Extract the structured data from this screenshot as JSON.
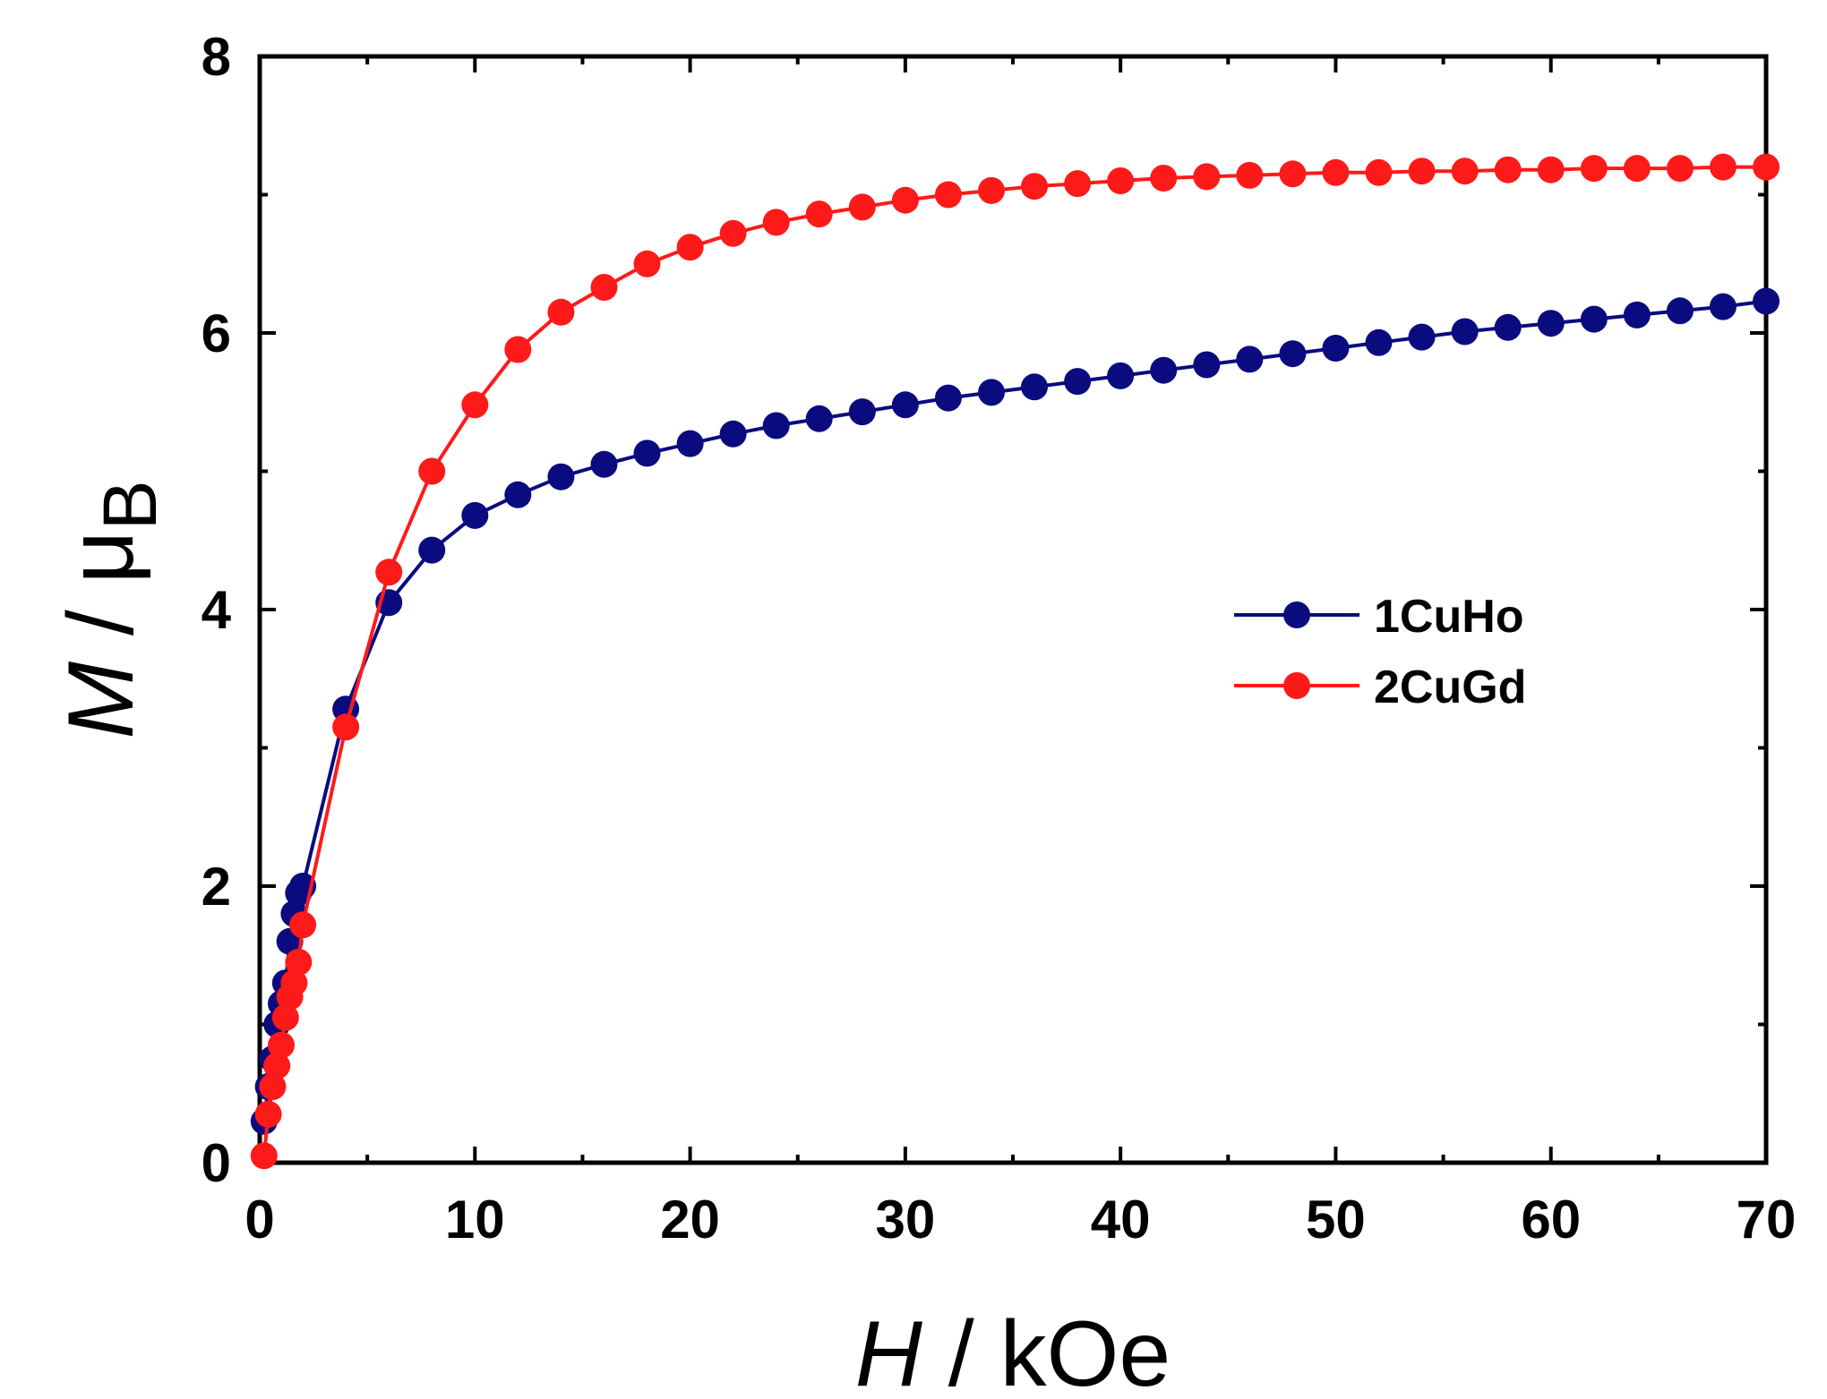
{
  "chart_data": {
    "type": "line",
    "title": "",
    "xlabel": {
      "symbol": "H",
      "unit": "kOe"
    },
    "ylabel": {
      "symbol": "M",
      "unit": "μ",
      "unit_sub": "B"
    },
    "xlim": [
      0,
      70
    ],
    "ylim": [
      0,
      8
    ],
    "xticks": [
      0,
      10,
      20,
      30,
      40,
      50,
      60,
      70
    ],
    "yticks": [
      0,
      2,
      4,
      6,
      8
    ],
    "grid": false,
    "legend_position": "center-right",
    "series": [
      {
        "name": "1CuHo",
        "color": "#0b0b80",
        "marker": "circle",
        "x": [
          0.2,
          0.4,
          0.6,
          0.8,
          1.0,
          1.2,
          1.4,
          1.6,
          1.8,
          2.0,
          4,
          6,
          8,
          10,
          12,
          14,
          16,
          18,
          20,
          22,
          24,
          26,
          28,
          30,
          32,
          34,
          36,
          38,
          40,
          42,
          44,
          46,
          48,
          50,
          52,
          54,
          56,
          58,
          60,
          62,
          64,
          66,
          68,
          70
        ],
        "y": [
          0.3,
          0.55,
          0.75,
          1.0,
          1.15,
          1.3,
          1.6,
          1.8,
          1.95,
          2.0,
          3.28,
          4.05,
          4.43,
          4.68,
          4.83,
          4.96,
          5.05,
          5.13,
          5.2,
          5.27,
          5.33,
          5.38,
          5.43,
          5.48,
          5.53,
          5.57,
          5.61,
          5.65,
          5.69,
          5.73,
          5.77,
          5.81,
          5.85,
          5.89,
          5.93,
          5.97,
          6.01,
          6.04,
          6.07,
          6.1,
          6.13,
          6.16,
          6.19,
          6.23
        ]
      },
      {
        "name": "2CuGd",
        "color": "#ff1a1a",
        "marker": "circle",
        "x": [
          0.2,
          0.4,
          0.6,
          0.8,
          1.0,
          1.2,
          1.4,
          1.6,
          1.8,
          2.0,
          4,
          6,
          8,
          10,
          12,
          14,
          16,
          18,
          20,
          22,
          24,
          26,
          28,
          30,
          32,
          34,
          36,
          38,
          40,
          42,
          44,
          46,
          48,
          50,
          52,
          54,
          56,
          58,
          60,
          62,
          64,
          66,
          68,
          70
        ],
        "y": [
          0.05,
          0.35,
          0.55,
          0.7,
          0.85,
          1.05,
          1.2,
          1.3,
          1.45,
          1.72,
          3.15,
          4.27,
          5.0,
          5.48,
          5.88,
          6.15,
          6.33,
          6.5,
          6.62,
          6.72,
          6.8,
          6.86,
          6.91,
          6.96,
          7.0,
          7.03,
          7.06,
          7.08,
          7.1,
          7.12,
          7.13,
          7.14,
          7.15,
          7.16,
          7.16,
          7.17,
          7.17,
          7.18,
          7.18,
          7.19,
          7.19,
          7.19,
          7.2,
          7.2
        ]
      }
    ]
  }
}
